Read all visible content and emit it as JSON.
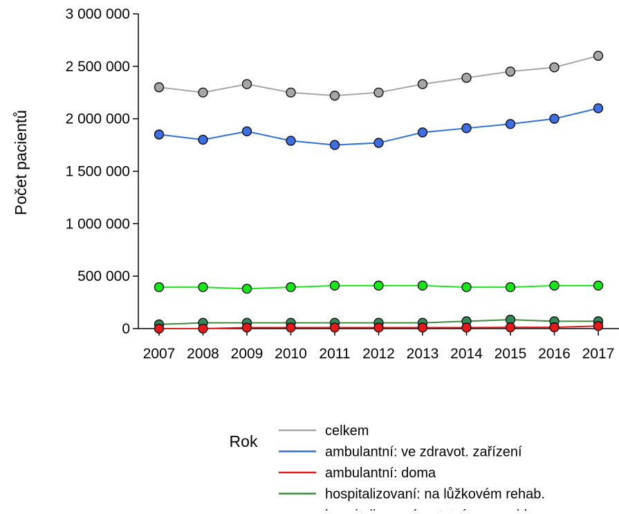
{
  "chart_data": {
    "type": "line",
    "xlabel": "Rok",
    "ylabel": "Počet pacientů",
    "x": [
      "2007",
      "2008",
      "2009",
      "2010",
      "2011",
      "2012",
      "2013",
      "2014",
      "2015",
      "2016",
      "2017"
    ],
    "ylim": [
      0,
      3000000
    ],
    "yticks": [
      0,
      500000,
      1000000,
      1500000,
      2000000,
      2500000,
      3000000
    ],
    "ytick_labels": [
      "0",
      "500 000",
      "1 000 000",
      "1 500 000",
      "2 000 000",
      "2 500 000",
      "3 000 000"
    ],
    "grid": false,
    "legend_position": "bottom",
    "series": [
      {
        "name": "celkem",
        "color": "#a6a6a6",
        "marker_color": "#a6a6a6",
        "values": [
          2300000,
          2250000,
          2330000,
          2250000,
          2220000,
          2250000,
          2330000,
          2390000,
          2450000,
          2490000,
          2600000
        ]
      },
      {
        "name": "ambulantní: ve zdravot. zařízení",
        "color": "#2e6fd8",
        "marker_color": "#3d6fe0",
        "values": [
          1850000,
          1800000,
          1880000,
          1790000,
          1750000,
          1770000,
          1870000,
          1910000,
          1950000,
          2000000,
          2100000
        ]
      },
      {
        "name": "ambulantní: doma",
        "color": "#e31a1c",
        "marker_color": "#e31a1c",
        "values": [
          0,
          0,
          10000,
          10000,
          10000,
          10000,
          10000,
          10000,
          12000,
          12000,
          25000
        ]
      },
      {
        "name": "hospitalizovaní: na lůžkovém rehab.",
        "color": "#3d8a3d",
        "marker_color": "#2e8b57",
        "values": [
          40000,
          55000,
          55000,
          55000,
          55000,
          55000,
          55000,
          70000,
          85000,
          70000,
          70000
        ]
      },
      {
        "name": "hospitalizovaní: ostatní nem. odd.",
        "color": "#19e619",
        "marker_color": "#19e619",
        "values": [
          395000,
          395000,
          380000,
          395000,
          410000,
          410000,
          410000,
          395000,
          395000,
          410000,
          410000
        ]
      }
    ]
  }
}
